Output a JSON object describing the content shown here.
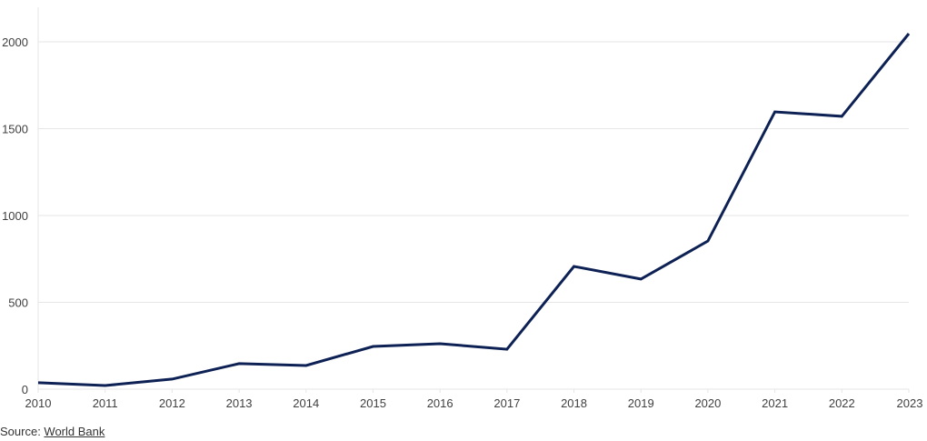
{
  "chart_data": {
    "type": "line",
    "title": "",
    "xlabel": "",
    "ylabel": "",
    "x": [
      "2010",
      "2011",
      "2012",
      "2013",
      "2014",
      "2015",
      "2016",
      "2017",
      "2018",
      "2019",
      "2020",
      "2021",
      "2022",
      "2023"
    ],
    "series": [
      {
        "name": "Value",
        "color": "#0d2154",
        "values": [
          37,
          21,
          58,
          147,
          136,
          246,
          262,
          230,
          707,
          634,
          853,
          1597,
          1571,
          2047
        ]
      }
    ],
    "yticks": [
      0,
      500,
      1000,
      1500,
      2000
    ],
    "ylim": [
      0,
      2200
    ],
    "grid": "horizontal",
    "legend": "none"
  },
  "source": {
    "prefix": "Source: ",
    "link_text": "World Bank"
  }
}
